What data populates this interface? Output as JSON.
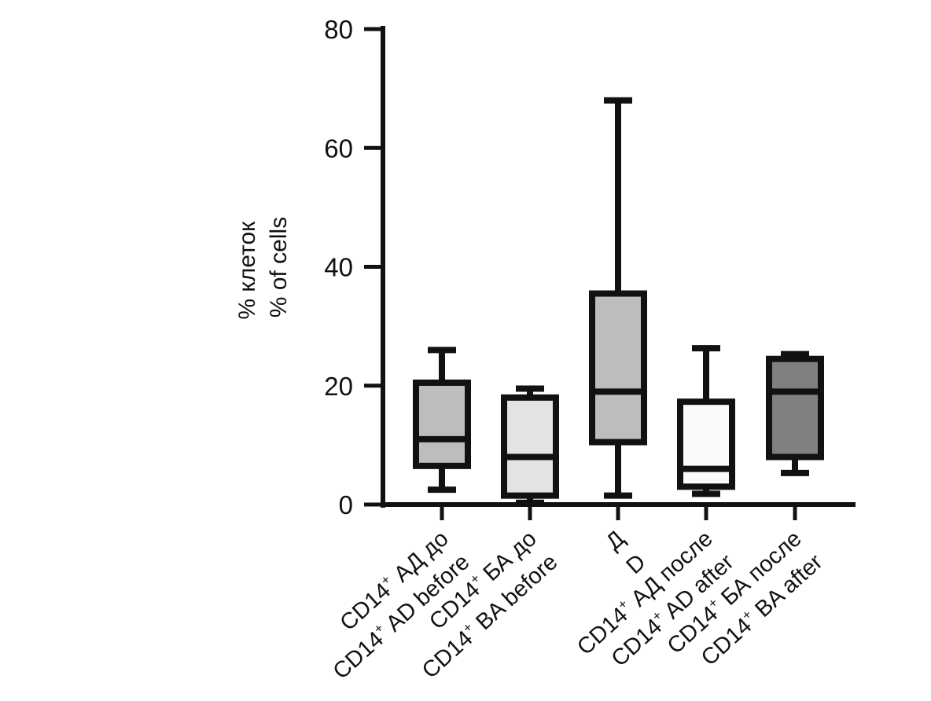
{
  "chart_data": {
    "type": "boxplot",
    "title": "",
    "ylabel_lines": [
      "% клеток",
      "% of cells"
    ],
    "ylim": [
      0,
      80
    ],
    "yticks": [
      0,
      20,
      40,
      60,
      80
    ],
    "categories": [
      {
        "id": "ad-before",
        "label_lines": [
          {
            "base": "CD14",
            "sup": "+",
            "rest": " АД до"
          },
          {
            "base": "CD14",
            "sup": "+",
            "rest": " AD before"
          }
        ],
        "min": 2.5,
        "q1": 6.5,
        "median": 11,
        "q3": 20.5,
        "max": 26,
        "fill": "#bdbdbd"
      },
      {
        "id": "ba-before",
        "label_lines": [
          {
            "base": "CD14",
            "sup": "+",
            "rest": " БА до"
          },
          {
            "base": "CD14",
            "sup": "+",
            "rest": " BA before"
          }
        ],
        "min": 0.3,
        "q1": 1.5,
        "median": 8,
        "q3": 18,
        "max": 19.5,
        "fill": "#e3e3e3"
      },
      {
        "id": "d",
        "label_lines": [
          {
            "base": "Д",
            "sup": "",
            "rest": ""
          },
          {
            "base": "D",
            "sup": "",
            "rest": ""
          }
        ],
        "min": 1.5,
        "q1": 10.5,
        "median": 19,
        "q3": 35.5,
        "max": 68,
        "fill": "#bdbdbd"
      },
      {
        "id": "ad-after",
        "label_lines": [
          {
            "base": "CD14",
            "sup": "+",
            "rest": " АД после"
          },
          {
            "base": "CD14",
            "sup": "+",
            "rest": " AD after"
          }
        ],
        "min": 1.8,
        "q1": 3,
        "median": 6,
        "q3": 17.3,
        "max": 26.3,
        "fill": "#fafafa"
      },
      {
        "id": "ba-after",
        "label_lines": [
          {
            "base": "CD14",
            "sup": "+",
            "rest": " БА после"
          },
          {
            "base": "CD14",
            "sup": "+",
            "rest": " BA after"
          }
        ],
        "min": 5.3,
        "q1": 8,
        "median": 19,
        "q3": 24.5,
        "max": 25.3,
        "fill": "#808080"
      }
    ]
  }
}
